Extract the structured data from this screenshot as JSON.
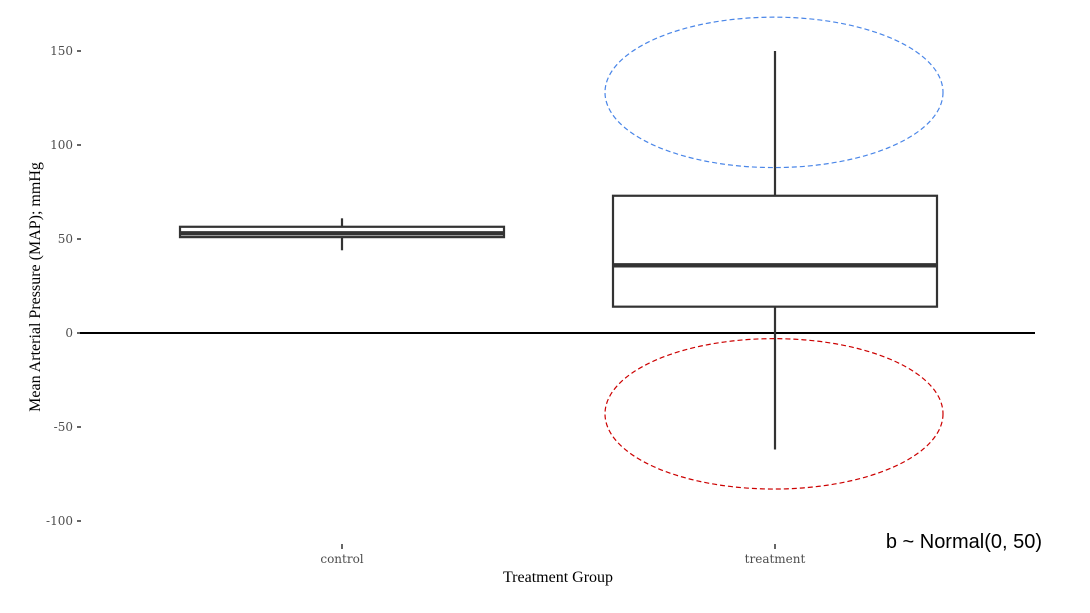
{
  "chart_data": {
    "type": "box",
    "xlabel": "Treatment Group",
    "ylabel": "Mean Arterial Pressure (MAP); mmHg",
    "ylim": [
      -110,
      165
    ],
    "yticks": [
      150,
      100,
      50,
      0,
      -50,
      -100
    ],
    "ytick_labels": [
      "150",
      "100",
      "50",
      "0",
      "-50",
      "-100"
    ],
    "categories": [
      "control",
      "treatment"
    ],
    "boxes": [
      {
        "category": "control",
        "whisker_low": 44,
        "q1": 51,
        "median": 53,
        "q3": 56.5,
        "whisker_high": 61
      },
      {
        "category": "treatment",
        "whisker_low": -62,
        "q1": 14,
        "median": 36,
        "q3": 73,
        "whisker_high": 150
      }
    ],
    "reference_line": 0,
    "ellipses": [
      {
        "category": "treatment",
        "center_y": 128,
        "y_half_height": 40,
        "color": "#4a86e8",
        "style": "dashed"
      },
      {
        "category": "treatment",
        "center_y": -43,
        "y_half_height": 40,
        "color": "#cc0000",
        "style": "dashed"
      }
    ],
    "annotation": "b ~ Normal(0, 50)",
    "grid": false,
    "colors": {
      "box_stroke": "#333333",
      "reference_line": "#000000",
      "tick_text": "#4d4d4d"
    }
  }
}
